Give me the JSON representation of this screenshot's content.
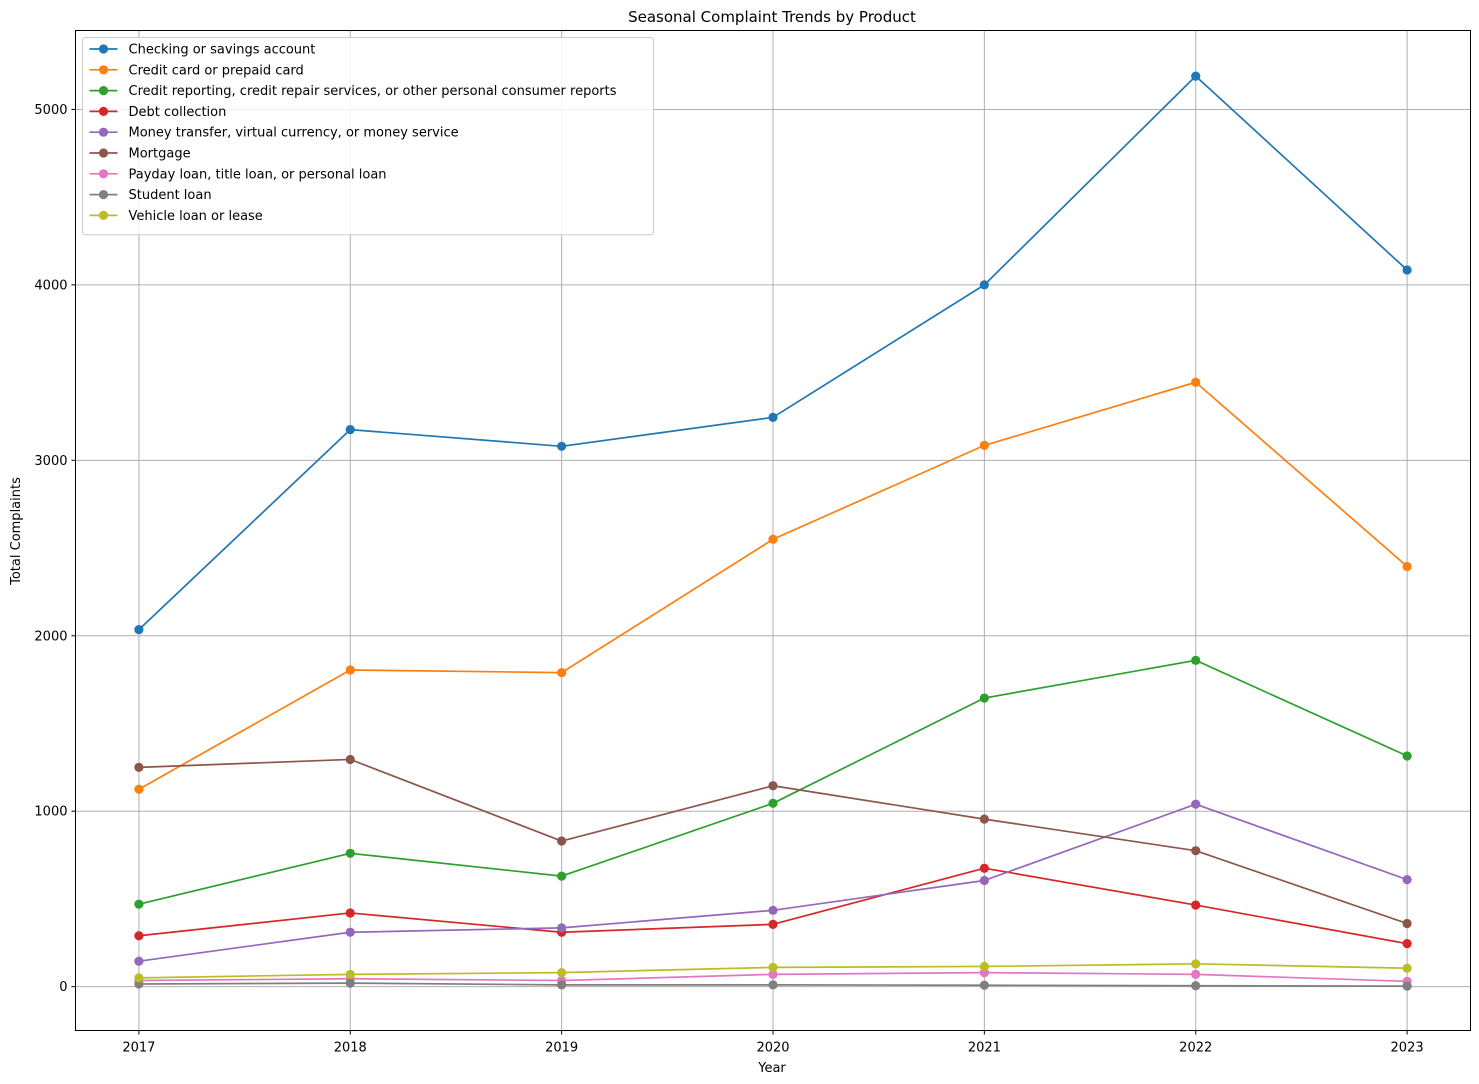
{
  "chart_data": {
    "type": "line",
    "title": "Seasonal Complaint Trends by Product",
    "xlabel": "Year",
    "ylabel": "Total Complaints",
    "x": [
      2017,
      2018,
      2019,
      2020,
      2021,
      2022,
      2023
    ],
    "x_tick_labels": [
      "2017",
      "2018",
      "2019",
      "2020",
      "2021",
      "2022",
      "2023"
    ],
    "y_ticks": [
      0,
      1000,
      2000,
      3000,
      4000,
      5000
    ],
    "y_tick_labels": [
      "0",
      "1000",
      "2000",
      "3000",
      "4000",
      "5000"
    ],
    "xlim": [
      2016.7,
      2023.3
    ],
    "ylim": [
      -250,
      5450
    ],
    "grid": true,
    "legend_position": "upper-left",
    "series": [
      {
        "name": "Checking or savings account",
        "color": "#1f77b4",
        "values": [
          2035,
          3175,
          3080,
          3245,
          4000,
          5190,
          4085
        ]
      },
      {
        "name": "Credit card or prepaid card",
        "color": "#ff7f0e",
        "values": [
          1125,
          1805,
          1790,
          2550,
          3085,
          3445,
          2395
        ]
      },
      {
        "name": "Credit reporting, credit repair services, or other personal consumer reports",
        "color": "#2ca02c",
        "values": [
          470,
          760,
          630,
          1045,
          1645,
          1860,
          1315
        ]
      },
      {
        "name": "Debt collection",
        "color": "#d62728",
        "values": [
          290,
          420,
          310,
          355,
          675,
          465,
          245
        ]
      },
      {
        "name": "Money transfer, virtual currency, or money service",
        "color": "#9467bd",
        "values": [
          145,
          310,
          335,
          435,
          605,
          1040,
          610
        ]
      },
      {
        "name": "Mortgage",
        "color": "#8c564b",
        "values": [
          1250,
          1295,
          830,
          1145,
          955,
          775,
          360
        ]
      },
      {
        "name": "Payday loan, title loan, or personal loan",
        "color": "#e377c2",
        "values": [
          35,
          45,
          35,
          70,
          80,
          70,
          30
        ]
      },
      {
        "name": "Student loan",
        "color": "#7f7f7f",
        "values": [
          15,
          20,
          10,
          10,
          8,
          5,
          3
        ]
      },
      {
        "name": "Vehicle loan or lease",
        "color": "#bcbd22",
        "values": [
          50,
          70,
          80,
          110,
          115,
          130,
          105
        ]
      }
    ]
  }
}
